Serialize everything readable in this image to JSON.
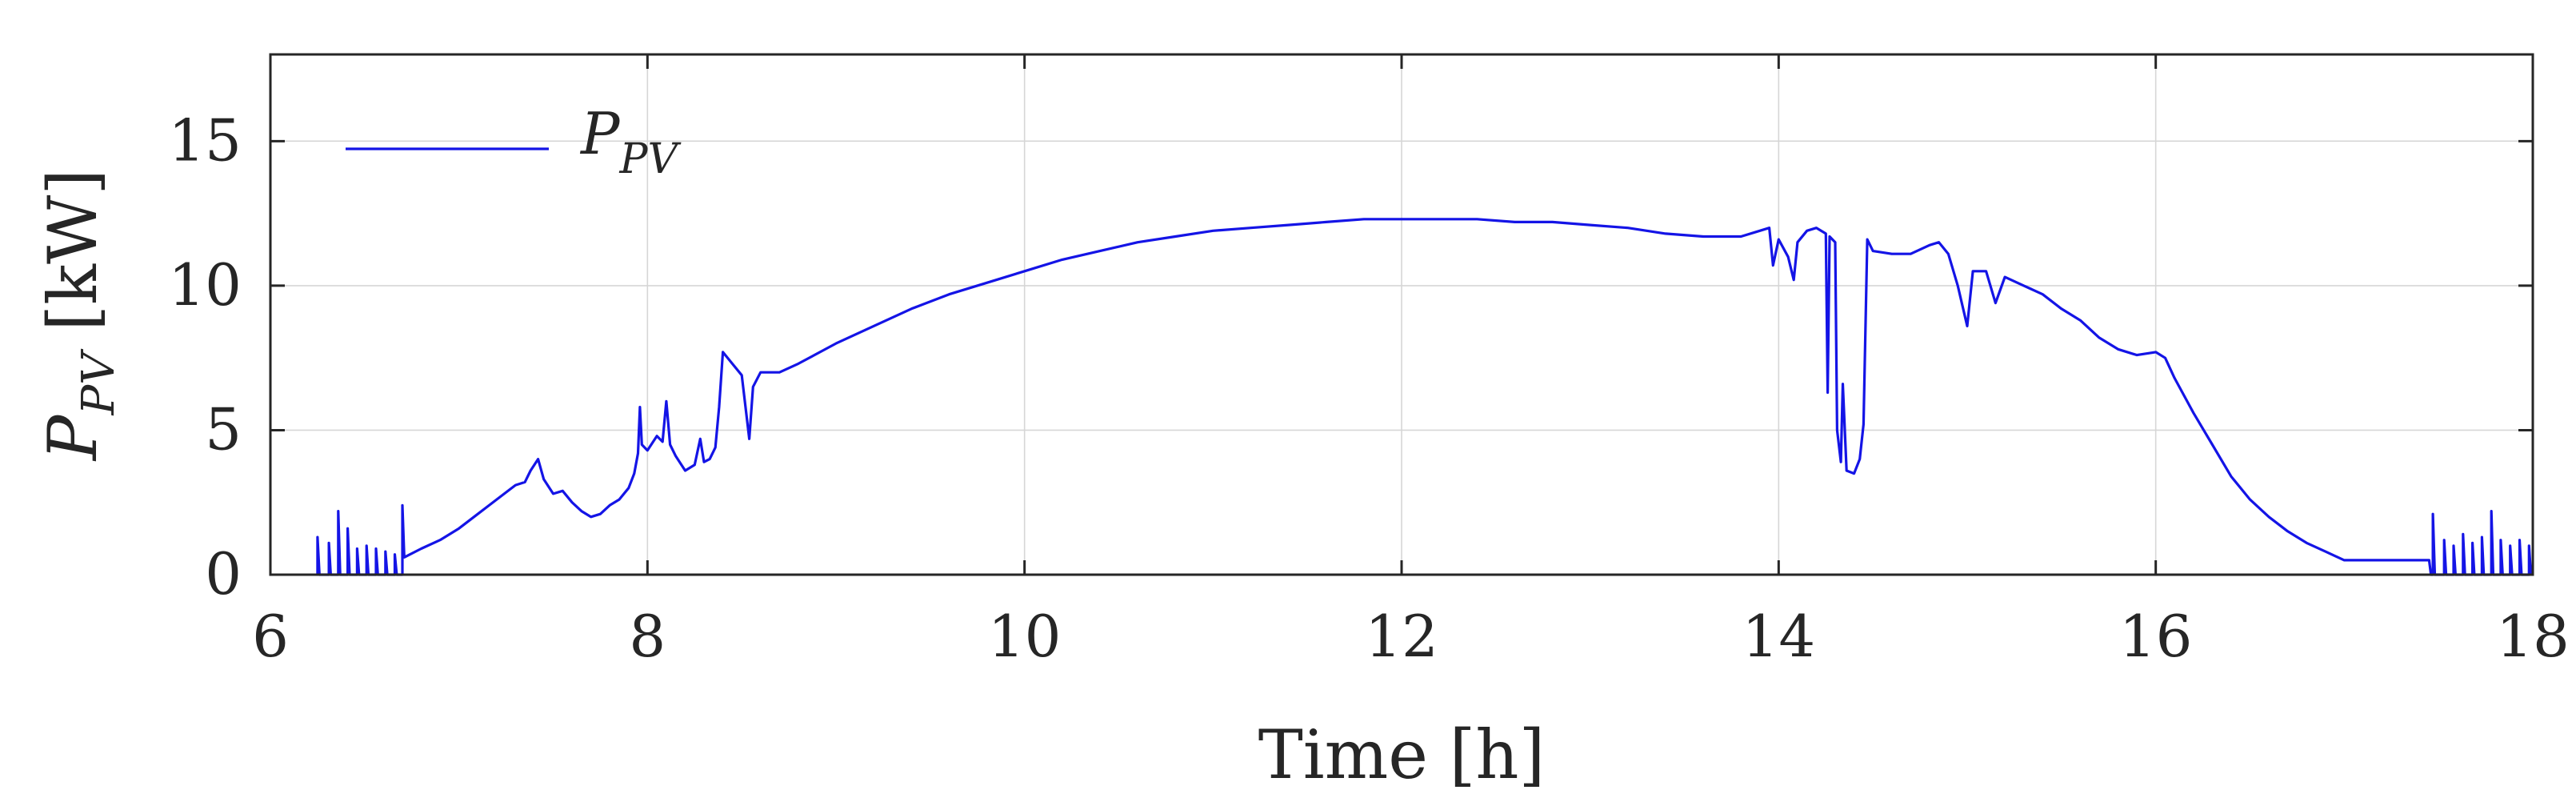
{
  "chart_data": {
    "type": "line",
    "title": "",
    "xlabel": "Time [h]",
    "ylabel": {
      "main": "P",
      "sub": "PV",
      "unit": " [kW]"
    },
    "xlim": [
      6,
      18
    ],
    "ylim": [
      0,
      18
    ],
    "xticks": [
      6,
      8,
      10,
      12,
      14,
      16,
      18
    ],
    "yticks": [
      0,
      5,
      10,
      15
    ],
    "grid": true,
    "legend_position": "top-left",
    "series": [
      {
        "name": {
          "main": "P",
          "sub": "PV"
        },
        "color": "#1414e6",
        "points": [
          [
            6.25,
            0
          ],
          [
            6.25,
            1.3
          ],
          [
            6.26,
            0
          ],
          [
            6.31,
            0
          ],
          [
            6.31,
            1.1
          ],
          [
            6.32,
            0
          ],
          [
            6.36,
            0
          ],
          [
            6.36,
            2.2
          ],
          [
            6.37,
            0
          ],
          [
            6.41,
            0
          ],
          [
            6.41,
            1.6
          ],
          [
            6.42,
            0
          ],
          [
            6.46,
            0
          ],
          [
            6.46,
            0.9
          ],
          [
            6.47,
            0
          ],
          [
            6.51,
            0
          ],
          [
            6.51,
            1.0
          ],
          [
            6.52,
            0
          ],
          [
            6.56,
            0
          ],
          [
            6.56,
            0.9
          ],
          [
            6.57,
            0
          ],
          [
            6.61,
            0
          ],
          [
            6.61,
            0.8
          ],
          [
            6.62,
            0
          ],
          [
            6.66,
            0
          ],
          [
            6.66,
            0.7
          ],
          [
            6.67,
            0
          ],
          [
            6.7,
            0
          ],
          [
            6.7,
            2.4
          ],
          [
            6.71,
            0.6
          ],
          [
            6.8,
            0.9
          ],
          [
            6.9,
            1.2
          ],
          [
            7.0,
            1.6
          ],
          [
            7.1,
            2.1
          ],
          [
            7.2,
            2.6
          ],
          [
            7.3,
            3.1
          ],
          [
            7.35,
            3.2
          ],
          [
            7.38,
            3.6
          ],
          [
            7.42,
            4.0
          ],
          [
            7.45,
            3.3
          ],
          [
            7.5,
            2.8
          ],
          [
            7.55,
            2.9
          ],
          [
            7.6,
            2.5
          ],
          [
            7.65,
            2.2
          ],
          [
            7.7,
            2.0
          ],
          [
            7.75,
            2.1
          ],
          [
            7.8,
            2.4
          ],
          [
            7.85,
            2.6
          ],
          [
            7.9,
            3.0
          ],
          [
            7.93,
            3.5
          ],
          [
            7.95,
            4.2
          ],
          [
            7.96,
            5.8
          ],
          [
            7.97,
            4.5
          ],
          [
            8.0,
            4.3
          ],
          [
            8.05,
            4.8
          ],
          [
            8.08,
            4.6
          ],
          [
            8.1,
            6.0
          ],
          [
            8.12,
            4.5
          ],
          [
            8.15,
            4.1
          ],
          [
            8.2,
            3.6
          ],
          [
            8.25,
            3.8
          ],
          [
            8.28,
            4.7
          ],
          [
            8.3,
            3.9
          ],
          [
            8.33,
            4.0
          ],
          [
            8.36,
            4.4
          ],
          [
            8.38,
            5.8
          ],
          [
            8.4,
            7.7
          ],
          [
            8.45,
            7.3
          ],
          [
            8.5,
            6.9
          ],
          [
            8.54,
            4.7
          ],
          [
            8.56,
            6.5
          ],
          [
            8.6,
            7.0
          ],
          [
            8.7,
            7.0
          ],
          [
            8.8,
            7.3
          ],
          [
            9.0,
            8.0
          ],
          [
            9.2,
            8.6
          ],
          [
            9.4,
            9.2
          ],
          [
            9.6,
            9.7
          ],
          [
            9.8,
            10.1
          ],
          [
            10.0,
            10.5
          ],
          [
            10.2,
            10.9
          ],
          [
            10.4,
            11.2
          ],
          [
            10.6,
            11.5
          ],
          [
            10.8,
            11.7
          ],
          [
            11.0,
            11.9
          ],
          [
            11.2,
            12.0
          ],
          [
            11.4,
            12.1
          ],
          [
            11.6,
            12.2
          ],
          [
            11.8,
            12.3
          ],
          [
            12.0,
            12.3
          ],
          [
            12.2,
            12.3
          ],
          [
            12.4,
            12.3
          ],
          [
            12.6,
            12.2
          ],
          [
            12.8,
            12.2
          ],
          [
            13.0,
            12.1
          ],
          [
            13.2,
            12.0
          ],
          [
            13.4,
            11.8
          ],
          [
            13.6,
            11.7
          ],
          [
            13.8,
            11.7
          ],
          [
            13.9,
            11.9
          ],
          [
            13.95,
            12.0
          ],
          [
            13.97,
            10.7
          ],
          [
            14.0,
            11.6
          ],
          [
            14.05,
            11.0
          ],
          [
            14.08,
            10.2
          ],
          [
            14.1,
            11.5
          ],
          [
            14.15,
            11.9
          ],
          [
            14.2,
            12.0
          ],
          [
            14.25,
            11.8
          ],
          [
            14.26,
            6.3
          ],
          [
            14.27,
            11.7
          ],
          [
            14.3,
            11.5
          ],
          [
            14.31,
            5.0
          ],
          [
            14.33,
            3.9
          ],
          [
            14.34,
            6.6
          ],
          [
            14.36,
            3.6
          ],
          [
            14.4,
            3.5
          ],
          [
            14.43,
            4.0
          ],
          [
            14.45,
            5.2
          ],
          [
            14.47,
            11.6
          ],
          [
            14.5,
            11.2
          ],
          [
            14.6,
            11.1
          ],
          [
            14.7,
            11.1
          ],
          [
            14.8,
            11.4
          ],
          [
            14.85,
            11.5
          ],
          [
            14.9,
            11.1
          ],
          [
            14.95,
            10.0
          ],
          [
            15.0,
            8.6
          ],
          [
            15.03,
            10.5
          ],
          [
            15.1,
            10.5
          ],
          [
            15.15,
            9.4
          ],
          [
            15.2,
            10.3
          ],
          [
            15.3,
            10.0
          ],
          [
            15.4,
            9.7
          ],
          [
            15.5,
            9.2
          ],
          [
            15.6,
            8.8
          ],
          [
            15.7,
            8.2
          ],
          [
            15.8,
            7.8
          ],
          [
            15.9,
            7.6
          ],
          [
            16.0,
            7.7
          ],
          [
            16.05,
            7.5
          ],
          [
            16.1,
            6.8
          ],
          [
            16.2,
            5.6
          ],
          [
            16.3,
            4.5
          ],
          [
            16.4,
            3.4
          ],
          [
            16.5,
            2.6
          ],
          [
            16.6,
            2.0
          ],
          [
            16.7,
            1.5
          ],
          [
            16.8,
            1.1
          ],
          [
            16.9,
            0.8
          ],
          [
            17.0,
            0.5
          ],
          [
            17.2,
            0.5
          ],
          [
            17.4,
            0.5
          ],
          [
            17.45,
            0.5
          ],
          [
            17.46,
            0
          ],
          [
            17.47,
            0
          ],
          [
            17.47,
            2.1
          ],
          [
            17.48,
            0
          ],
          [
            17.53,
            0
          ],
          [
            17.53,
            1.2
          ],
          [
            17.54,
            0
          ],
          [
            17.58,
            0
          ],
          [
            17.58,
            1.0
          ],
          [
            17.59,
            0
          ],
          [
            17.63,
            0
          ],
          [
            17.63,
            1.4
          ],
          [
            17.64,
            0
          ],
          [
            17.68,
            0
          ],
          [
            17.68,
            1.1
          ],
          [
            17.69,
            0
          ],
          [
            17.73,
            0
          ],
          [
            17.73,
            1.3
          ],
          [
            17.74,
            0
          ],
          [
            17.78,
            0
          ],
          [
            17.78,
            2.2
          ],
          [
            17.79,
            0
          ],
          [
            17.83,
            0
          ],
          [
            17.83,
            1.2
          ],
          [
            17.84,
            0
          ],
          [
            17.88,
            0
          ],
          [
            17.88,
            1.0
          ],
          [
            17.89,
            0
          ],
          [
            17.93,
            0
          ],
          [
            17.93,
            1.2
          ],
          [
            17.94,
            0
          ],
          [
            17.98,
            0
          ],
          [
            17.98,
            1.0
          ],
          [
            17.99,
            0
          ]
        ]
      }
    ]
  }
}
